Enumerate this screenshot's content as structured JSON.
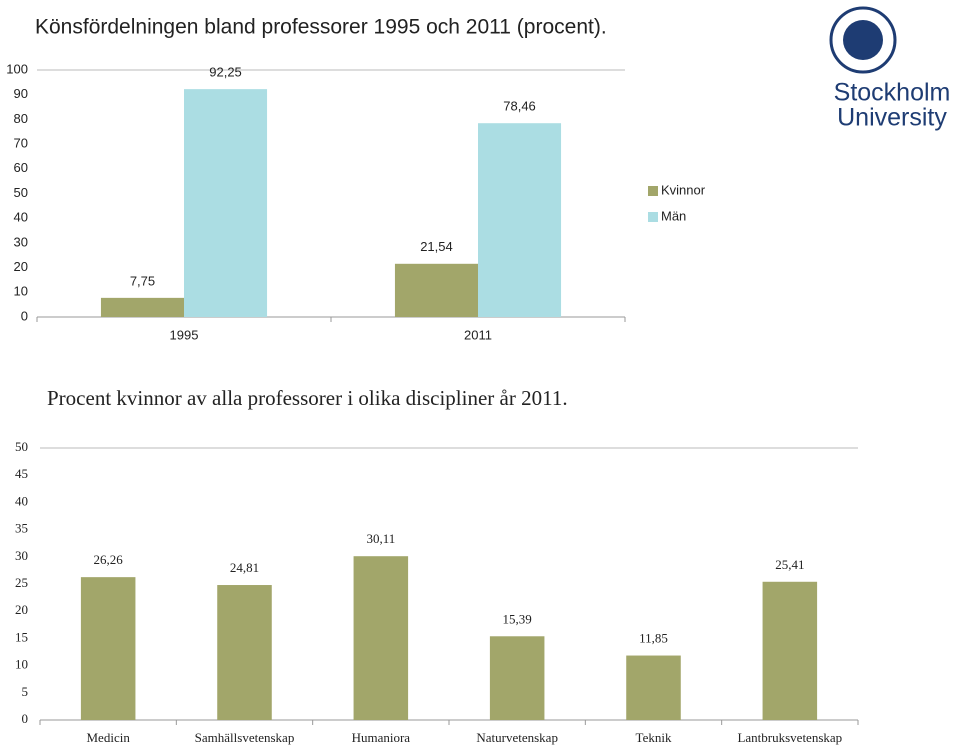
{
  "logo": {
    "line1": "Stockholm",
    "line2": "University"
  },
  "chart_data": [
    {
      "type": "bar",
      "title": "Könsfördelningen bland professorer 1995 och 2011 (procent).",
      "categories": [
        "1995",
        "2011"
      ],
      "series": [
        {
          "name": "Kvinnor",
          "color": "#a2a66a",
          "values": [
            7.75,
            21.54
          ],
          "value_labels": [
            "7,75",
            "21,54"
          ]
        },
        {
          "name": "Män",
          "color": "#abdde3",
          "values": [
            92.25,
            78.46
          ],
          "value_labels": [
            "92,25",
            "78,46"
          ]
        }
      ],
      "ylim": [
        0,
        100
      ],
      "yticks": [
        0,
        10,
        20,
        30,
        40,
        50,
        60,
        70,
        80,
        90,
        100
      ],
      "grid": false,
      "legend": "right"
    },
    {
      "type": "bar",
      "title": "Procent kvinnor av alla professorer i olika discipliner år 2011.",
      "categories": [
        "Medicin",
        "Samhällsvetenskap",
        "Humaniora",
        "Naturvetenskap",
        "Teknik",
        "Lantbruksvetenskap"
      ],
      "values": [
        26.26,
        24.81,
        30.11,
        15.39,
        11.85,
        25.41
      ],
      "value_labels": [
        "26,26",
        "24,81",
        "30,11",
        "15,39",
        "11,85",
        "25,41"
      ],
      "color": "#a2a66a",
      "ylim": [
        0,
        50
      ],
      "yticks": [
        0,
        5,
        10,
        15,
        20,
        25,
        30,
        35,
        40,
        45,
        50
      ],
      "grid": false
    }
  ]
}
